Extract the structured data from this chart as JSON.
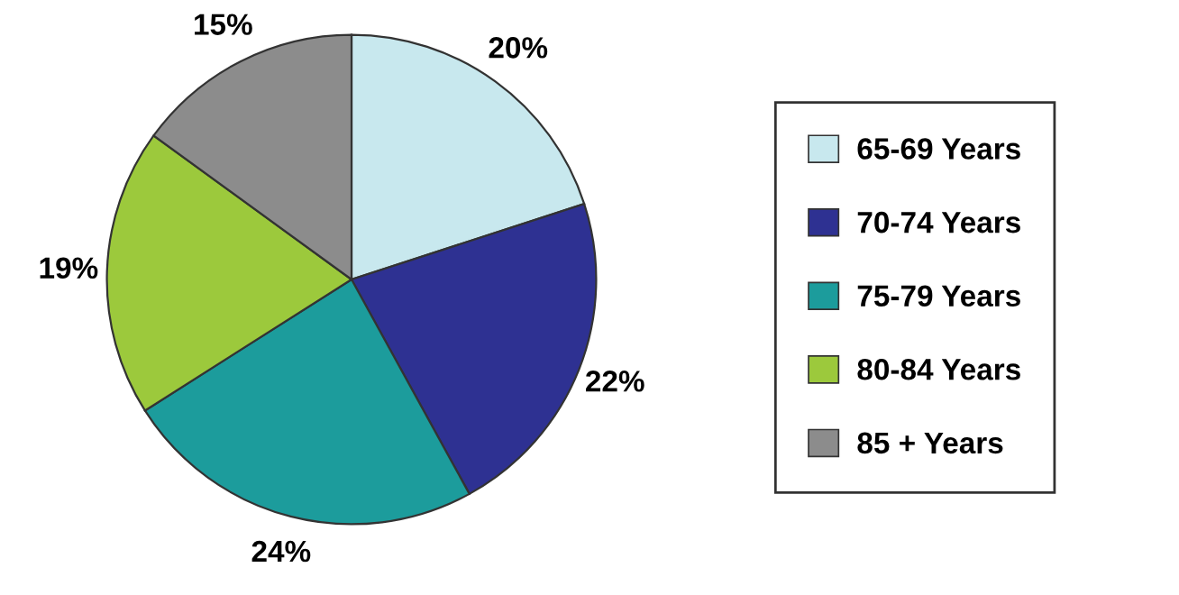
{
  "chart_data": {
    "type": "pie",
    "categories": [
      "65-69 Years",
      "70-74 Years",
      "75-79 Years",
      "80-84 Years",
      "85 + Years"
    ],
    "values": [
      20,
      22,
      24,
      19,
      15
    ],
    "value_labels": [
      "20%",
      "22%",
      "24%",
      "19%",
      "15%"
    ],
    "colors": [
      "#c8e8ee",
      "#2e3192",
      "#1c9c9c",
      "#9cc93c",
      "#8c8c8c"
    ],
    "legend": "right"
  }
}
